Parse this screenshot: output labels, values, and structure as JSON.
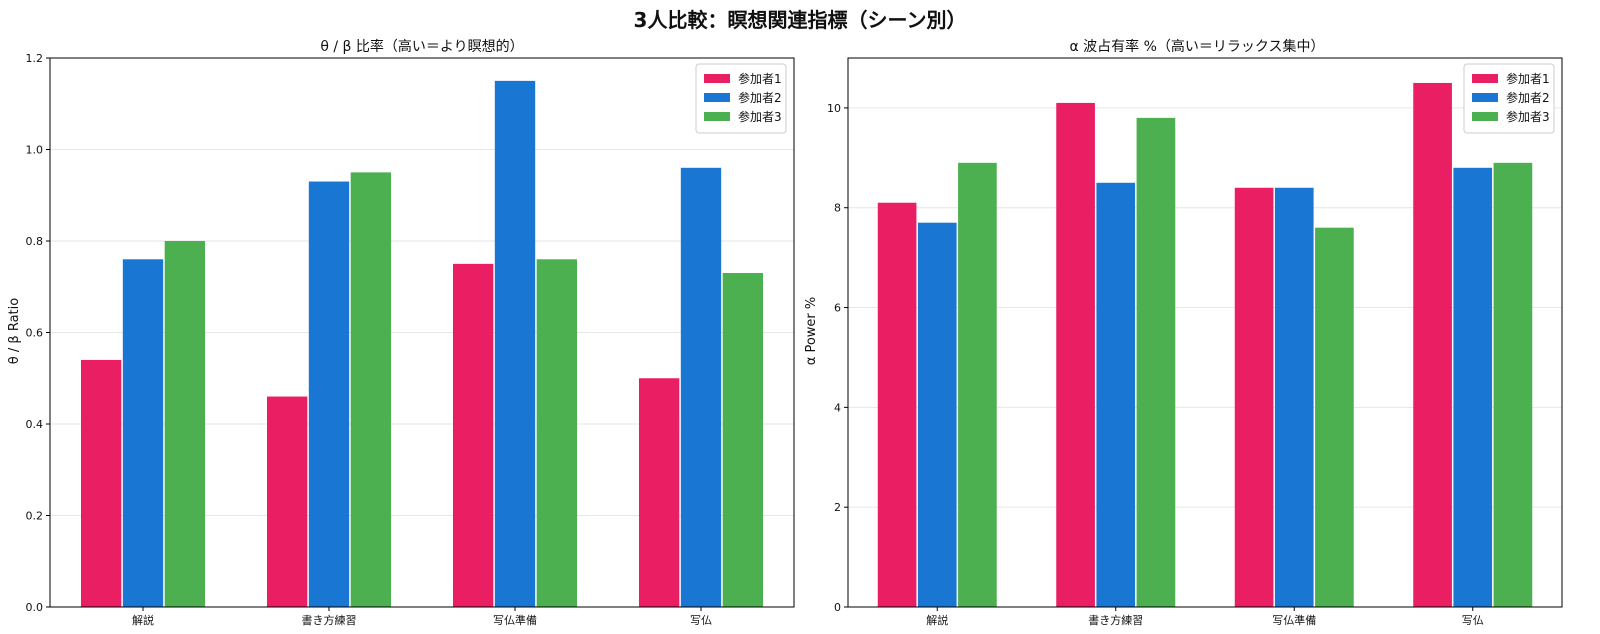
{
  "figure": {
    "suptitle": "3人比較：瞑想関連指標（シーン別）"
  },
  "colors": {
    "series": [
      "#E91E63",
      "#1976D2",
      "#4CAF50"
    ],
    "grid": "#e6e6e6",
    "axis": "#000000"
  },
  "chart_data": [
    {
      "type": "bar",
      "title": "θ / β 比率（高い＝より瞑想的）",
      "xlabel": "",
      "ylabel": "θ / β Ratio",
      "categories": [
        "解説",
        "書き方練習",
        "写仏準備",
        "写仏"
      ],
      "ylim": [
        0,
        1.2
      ],
      "yticks": [
        0.0,
        0.2,
        0.4,
        0.6,
        0.8,
        1.0,
        1.2
      ],
      "ytick_labels": [
        "0.0",
        "0.2",
        "0.4",
        "0.6",
        "0.8",
        "1.0",
        "1.2"
      ],
      "grid": true,
      "legend_position": "top-right",
      "series": [
        {
          "name": "参加者1",
          "values": [
            0.54,
            0.46,
            0.75,
            0.5
          ]
        },
        {
          "name": "参加者2",
          "values": [
            0.76,
            0.93,
            1.15,
            0.96
          ]
        },
        {
          "name": "参加者3",
          "values": [
            0.8,
            0.95,
            0.76,
            0.73
          ]
        }
      ]
    },
    {
      "type": "bar",
      "title": "α 波占有率 %（高い＝リラックス集中）",
      "xlabel": "",
      "ylabel": "α Power %",
      "categories": [
        "解説",
        "書き方練習",
        "写仏準備",
        "写仏"
      ],
      "ylim": [
        0,
        11
      ],
      "yticks": [
        0,
        2,
        4,
        6,
        8,
        10
      ],
      "ytick_labels": [
        "0",
        "2",
        "4",
        "6",
        "8",
        "10"
      ],
      "grid": true,
      "legend_position": "top-right",
      "series": [
        {
          "name": "参加者1",
          "values": [
            8.1,
            10.1,
            8.4,
            10.5
          ]
        },
        {
          "name": "参加者2",
          "values": [
            7.7,
            8.5,
            8.4,
            8.8
          ]
        },
        {
          "name": "参加者3",
          "values": [
            8.9,
            9.8,
            7.6,
            8.9
          ]
        }
      ]
    }
  ]
}
